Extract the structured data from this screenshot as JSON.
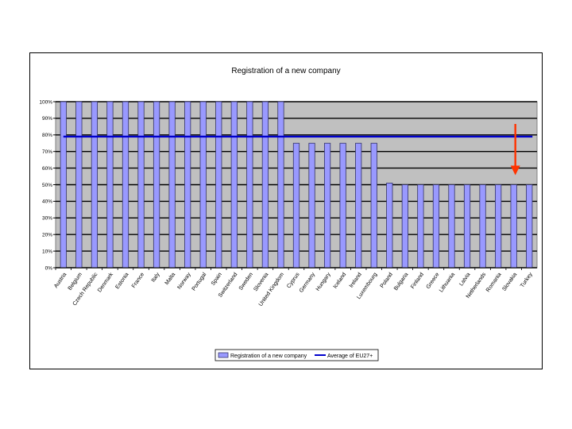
{
  "chart_data": {
    "type": "bar",
    "title": "Registration of a new company",
    "categories": [
      "Austria",
      "Belgium",
      "Czech Republic",
      "Denmark",
      "Estonia",
      "France",
      "Italy",
      "Malta",
      "Norway",
      "Portugal",
      "Spain",
      "Switzerland",
      "Sweden",
      "Slovenia",
      "United Kingdom",
      "Cyprus",
      "Germany",
      "Hungary",
      "Iceland",
      "Ireland",
      "Luxembourg",
      "Poland",
      "Bulgaria",
      "Finland",
      "Greece",
      "Lithuania",
      "Latvia",
      "Netherlands",
      "Romania",
      "Slovakia",
      "Turkey"
    ],
    "series": [
      {
        "name": "Registration of a new company",
        "type": "bar",
        "values": [
          100,
          100,
          100,
          100,
          100,
          100,
          100,
          100,
          100,
          100,
          100,
          100,
          100,
          100,
          100,
          75,
          75,
          75,
          75,
          75,
          75,
          51,
          50,
          50,
          50,
          50,
          50,
          50,
          50,
          50,
          50
        ]
      },
      {
        "name": "Average of EU27+",
        "type": "line",
        "value": 79
      }
    ],
    "yticks": [
      "0%",
      "10%",
      "20%",
      "30%",
      "40%",
      "50%",
      "60%",
      "70%",
      "80%",
      "90%",
      "100%"
    ],
    "ylim": [
      0,
      100
    ],
    "grid": true,
    "legend_position": "bottom",
    "colors": {
      "bar_fill": "#9999ff",
      "bar_stroke": "#333366",
      "average_line": "#0000cc",
      "plot_background": "#c0c0c0",
      "arrow": "#ff3300"
    },
    "annotation": {
      "type": "arrow",
      "target_category": "Slovakia"
    }
  }
}
